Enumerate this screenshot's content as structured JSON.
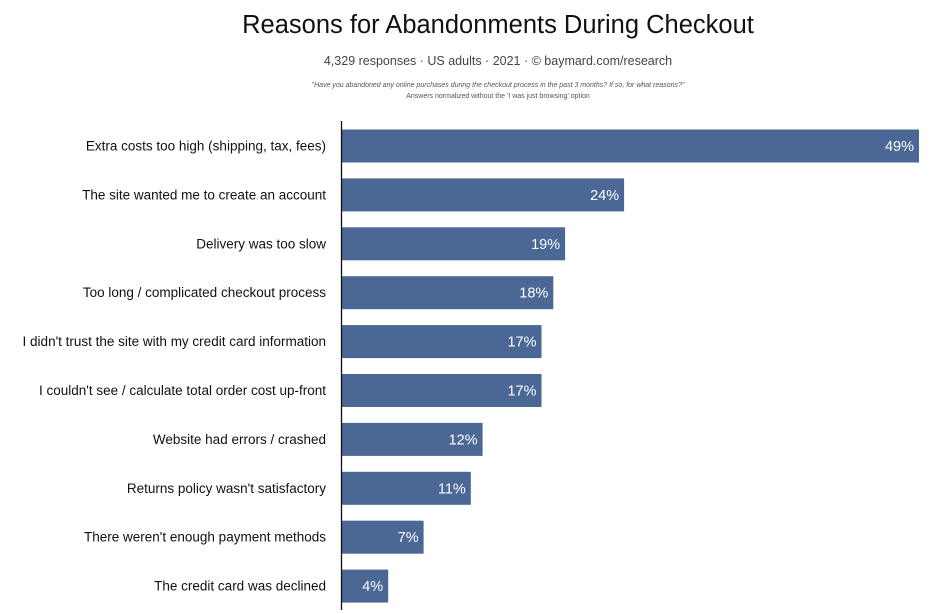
{
  "header": {
    "title": "Reasons for Abandonments During Checkout",
    "subtitle": "4,329 responses  ·  US adults  ·  2021  ·  © baymard.com/research",
    "question": "\"Have you abandoned any online purchases during the checkout process in the past 3 months? If so, for what reasons?\"",
    "normalization_note": "Answers normalized without the 'I was just browsing' option"
  },
  "chart_data": {
    "type": "bar",
    "orientation": "horizontal",
    "title": "Reasons for Abandonments During Checkout",
    "xlabel": "",
    "ylabel": "",
    "unit": "%",
    "xlim": [
      0,
      49
    ],
    "grid": false,
    "legend": "none",
    "bar_color": "#4a6796",
    "categories": [
      "Extra costs too high (shipping, tax, fees)",
      "The site wanted me to create an account",
      "Delivery was too slow",
      "Too long / complicated checkout process",
      "I didn't trust the site with my credit card information",
      "I couldn't see / calculate total order cost up-front",
      "Website had errors / crashed",
      "Returns policy wasn't satisfactory",
      "There weren't enough payment methods",
      "The credit card was declined"
    ],
    "values": [
      49,
      24,
      19,
      18,
      17,
      17,
      12,
      11,
      7,
      4
    ],
    "data_labels": [
      "49%",
      "24%",
      "19%",
      "18%",
      "17%",
      "17%",
      "12%",
      "11%",
      "7%",
      "4%"
    ]
  }
}
